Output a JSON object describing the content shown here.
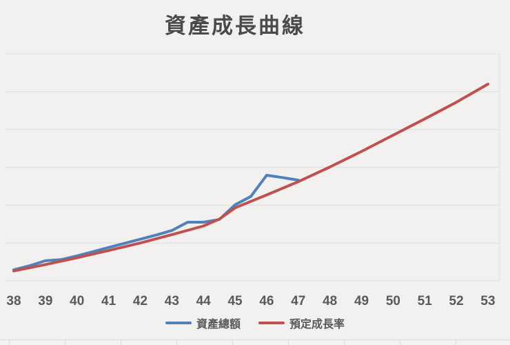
{
  "chart_data": {
    "type": "line",
    "title": "資產成長曲線",
    "x_ticks": [
      "38",
      "39",
      "40",
      "41",
      "42",
      "43",
      "44",
      "45",
      "46",
      "47",
      "48",
      "49",
      "50",
      "51",
      "52",
      "53"
    ],
    "x_range": [
      38,
      53
    ],
    "xlabel": "",
    "ylabel": "",
    "y_axis_labels_visible": false,
    "y_unit": "relative units (bottom gridline = 0, gridline spacing = 1; chart shows no y-axis numbers)",
    "y_gridline_count": 7,
    "ylim": [
      0,
      6
    ],
    "grid": "horizontal-only",
    "legend_position": "bottom-center",
    "series": [
      {
        "name": "資產總額",
        "color": "#4f81bd",
        "points": [
          [
            38,
            0.29
          ],
          [
            38.5,
            0.4
          ],
          [
            39,
            0.53
          ],
          [
            39.5,
            0.56
          ],
          [
            40,
            0.66
          ],
          [
            40.5,
            0.77
          ],
          [
            41,
            0.88
          ],
          [
            41.5,
            0.99
          ],
          [
            42,
            1.1
          ],
          [
            42.5,
            1.21
          ],
          [
            43,
            1.33
          ],
          [
            43.5,
            1.55
          ],
          [
            44,
            1.55
          ],
          [
            44.5,
            1.62
          ],
          [
            45,
            2.01
          ],
          [
            45.5,
            2.23
          ],
          [
            46,
            2.79
          ],
          [
            46.5,
            2.73
          ],
          [
            47,
            2.66
          ]
        ]
      },
      {
        "name": "預定成長率",
        "color": "#c0504d",
        "points": [
          [
            38,
            0.26
          ],
          [
            39,
            0.43
          ],
          [
            40,
            0.61
          ],
          [
            41,
            0.8
          ],
          [
            42,
            1.0
          ],
          [
            43,
            1.22
          ],
          [
            44,
            1.45
          ],
          [
            44.5,
            1.63
          ],
          [
            45,
            1.93
          ],
          [
            46,
            2.27
          ],
          [
            47,
            2.62
          ],
          [
            48,
            3.01
          ],
          [
            49,
            3.42
          ],
          [
            50,
            3.85
          ],
          [
            51,
            4.28
          ],
          [
            52,
            4.72
          ],
          [
            53,
            5.2
          ]
        ]
      }
    ]
  },
  "colors": {
    "background": "#f2f1ef",
    "gridline": "#e3e2e0",
    "plot_right_border": "#e3e2e0",
    "title_text": "#4a4a4a",
    "axis_text": "#595959",
    "sheet_line": "#dbdad8"
  }
}
